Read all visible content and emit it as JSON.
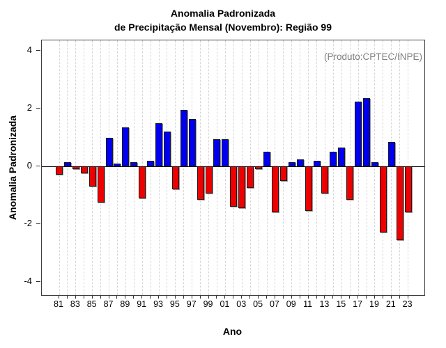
{
  "title": {
    "line1": "Anomalia Padronizada",
    "line2": "de Precipitação Mensal (Novembro): Região 99"
  },
  "annotation": "(Produto:CPTEC/INPE)",
  "axes": {
    "x_label": "Ano",
    "y_label": "Anomalia Padronizada",
    "y_ticks": [
      4,
      2,
      0,
      -2,
      -4
    ],
    "x_tick_labels": [
      "81",
      "83",
      "85",
      "87",
      "89",
      "91",
      "93",
      "95",
      "97",
      "99",
      "01",
      "03",
      "05",
      "07",
      "09",
      "11",
      "13",
      "15",
      "17",
      "19",
      "21",
      "23"
    ]
  },
  "colors": {
    "positive_bar": "#0000EE",
    "negative_bar": "#EE0000",
    "bar_border": "#1b1b1b",
    "gridline": "#cfcfcf",
    "annotation_text": "#7f7f7f"
  },
  "chart_data": {
    "type": "bar",
    "title": "Anomalia Padronizada de Precipitação Mensal (Novembro): Região 99",
    "xlabel": "Ano",
    "ylabel": "Anomalia Padronizada",
    "ylim": [
      -4.4,
      4.4
    ],
    "grid": "vertical-dotted-per-year",
    "legend": "none",
    "years": [
      1981,
      1982,
      1983,
      1984,
      1985,
      1986,
      1987,
      1988,
      1989,
      1990,
      1991,
      1992,
      1993,
      1994,
      1995,
      1996,
      1997,
      1998,
      1999,
      2000,
      2001,
      2002,
      2003,
      2004,
      2005,
      2006,
      2007,
      2008,
      2009,
      2010,
      2011,
      2012,
      2013,
      2014,
      2015,
      2016,
      2017,
      2018,
      2019,
      2020,
      2021,
      2022,
      2023
    ],
    "values": [
      -0.3,
      0.15,
      -0.1,
      -0.25,
      -0.7,
      -1.25,
      1.0,
      0.1,
      1.35,
      0.15,
      -1.1,
      0.2,
      1.5,
      1.2,
      -0.8,
      1.95,
      1.65,
      -1.15,
      -0.95,
      0.95,
      0.95,
      -1.4,
      -1.45,
      -0.75,
      -0.1,
      0.5,
      -1.6,
      -0.5,
      0.15,
      0.25,
      -1.55,
      0.2,
      -0.95,
      0.5,
      0.65,
      -1.15,
      2.25,
      2.35,
      0.15,
      -2.3,
      0.85,
      -2.55,
      -1.6
    ],
    "positive_color": "#0000EE",
    "negative_color": "#EE0000"
  }
}
